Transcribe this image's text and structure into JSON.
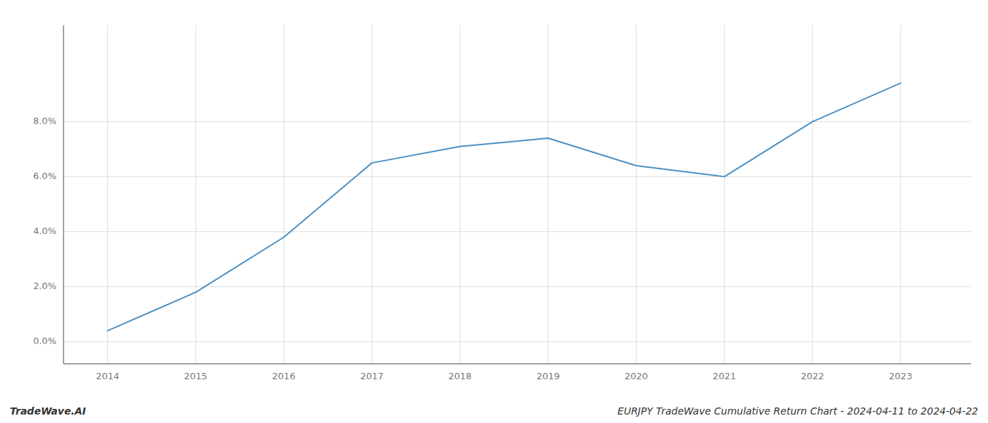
{
  "chart_data": {
    "type": "line",
    "x": [
      2014,
      2015,
      2016,
      2017,
      2018,
      2019,
      2020,
      2021,
      2022,
      2023
    ],
    "values": [
      0.004,
      0.018,
      0.038,
      0.065,
      0.071,
      0.074,
      0.064,
      0.06,
      0.08,
      0.094
    ],
    "color": "#4a90c4",
    "xlim": [
      2013.5,
      2023.8
    ],
    "ylim": [
      -0.008,
      0.115
    ],
    "xticks": [
      2014,
      2015,
      2016,
      2017,
      2018,
      2019,
      2020,
      2021,
      2022,
      2023
    ],
    "yticks": [
      {
        "value": 0.0,
        "label": "0.0%"
      },
      {
        "value": 0.02,
        "label": "2.0%"
      },
      {
        "value": 0.04,
        "label": "4.0%"
      },
      {
        "value": 0.06,
        "label": "6.0%"
      },
      {
        "value": 0.08,
        "label": "8.0%"
      }
    ],
    "grid": true,
    "annotations": [
      "TradeWave.AI",
      "EURJPY TradeWave Cumulative Return Chart - 2024-04-11 to 2024-04-22"
    ]
  }
}
